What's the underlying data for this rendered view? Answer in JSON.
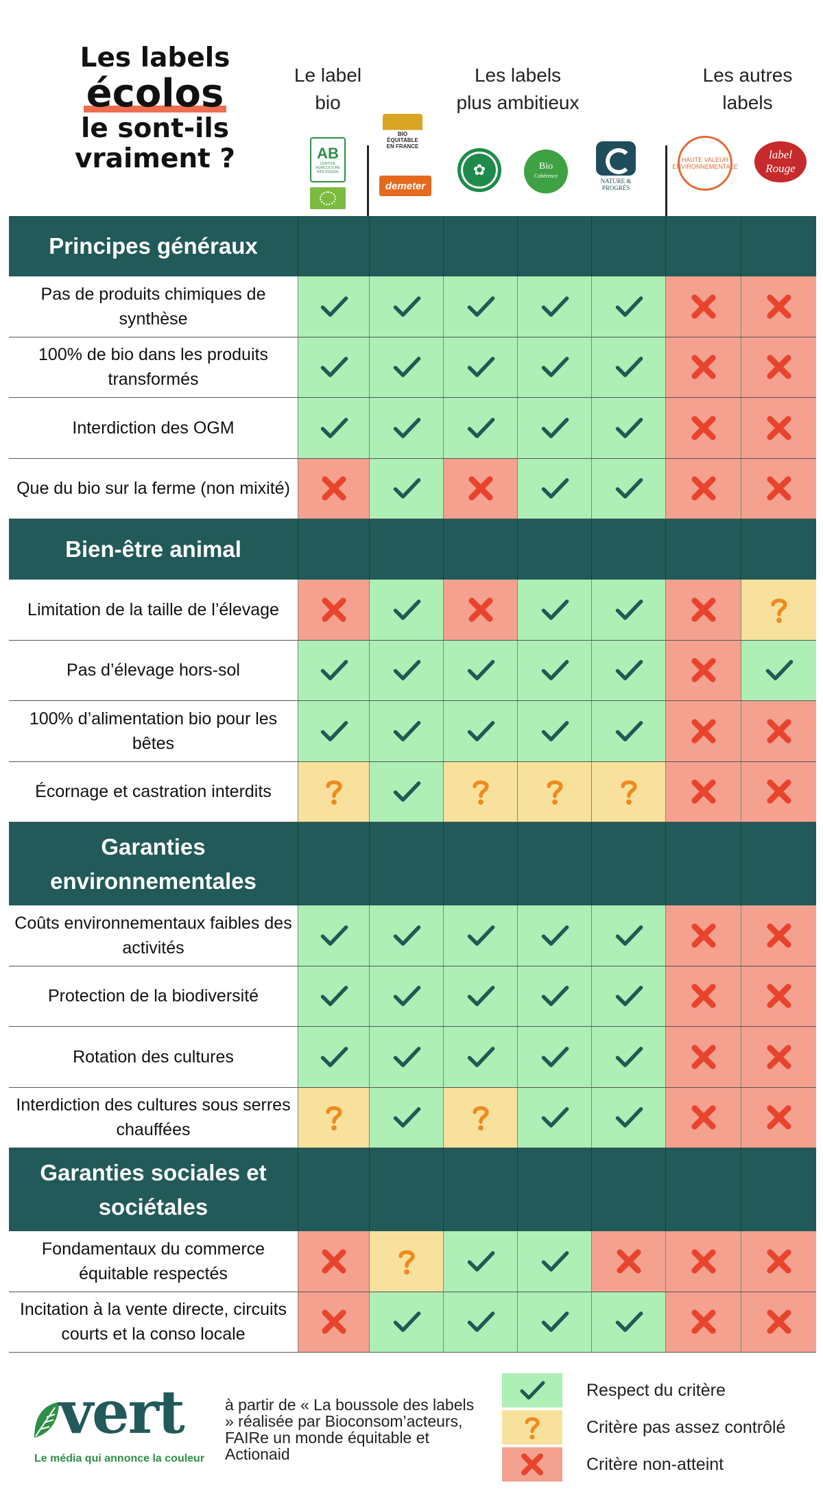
{
  "title": {
    "line1": "Les labels",
    "line2": "écolos",
    "line3": "le sont-ils",
    "line4": "vraiment ?"
  },
  "groups": {
    "bio": {
      "line1": "Le label",
      "line2": "bio"
    },
    "ambitious": {
      "line1": "Les labels",
      "line2": "plus ambitieux"
    },
    "others": {
      "line1": "Les autres",
      "line2": "labels"
    }
  },
  "logos": {
    "ab": {
      "text": "AB",
      "small": "CERTIFIÉ AGRICULTURE BIOLOGIQUE"
    },
    "bio_equitable": {
      "text": "BIO ÉQUITABLE EN FRANCE"
    },
    "demeter": {
      "text": "demeter"
    },
    "fnab": {
      "text": "✿"
    },
    "bio_coherence": {
      "text": "Bio",
      "small": "Cohérence"
    },
    "nature_progres": {
      "text": "NATURE & PROGRÈS"
    },
    "hve": {
      "text": "HAUTE VALEUR ENVIRONNEMENTALE"
    },
    "label_rouge": {
      "text": "label Rouge"
    }
  },
  "colors": {
    "section": "#215a58",
    "yes": "#aeefb6",
    "partial": "#f7e19d",
    "no": "#f4a190",
    "check": "#1f5a55",
    "question": "#f08a1e",
    "cross": "#e8442d",
    "accent": "#ee6e4f"
  },
  "chart_data": {
    "type": "table",
    "columns": [
      "AB",
      "Bio Équitable en France / Demeter",
      "FNAB",
      "Bio Cohérence",
      "Nature & Progrès",
      "HVE",
      "Label Rouge"
    ],
    "sections": [
      {
        "title": "Principes généraux",
        "rows": [
          {
            "label": "Pas de produits chimiques de synthèse",
            "values": [
              "yes",
              "yes",
              "yes",
              "yes",
              "yes",
              "no",
              "no"
            ]
          },
          {
            "label": "100% de bio dans les produits transformés",
            "values": [
              "yes",
              "yes",
              "yes",
              "yes",
              "yes",
              "no",
              "no"
            ]
          },
          {
            "label": "Interdiction des OGM",
            "values": [
              "yes",
              "yes",
              "yes",
              "yes",
              "yes",
              "no",
              "no"
            ]
          },
          {
            "label": "Que du bio sur la ferme (non mixité)",
            "values": [
              "no",
              "yes",
              "no",
              "yes",
              "yes",
              "no",
              "no"
            ]
          }
        ]
      },
      {
        "title": "Bien-être animal",
        "rows": [
          {
            "label": "Limitation de la taille de l’élevage",
            "values": [
              "no",
              "yes",
              "no",
              "yes",
              "yes",
              "no",
              "partial"
            ]
          },
          {
            "label": "Pas d’élevage hors-sol",
            "values": [
              "yes",
              "yes",
              "yes",
              "yes",
              "yes",
              "no",
              "yes"
            ]
          },
          {
            "label": "100% d’alimentation bio pour les bêtes",
            "values": [
              "yes",
              "yes",
              "yes",
              "yes",
              "yes",
              "no",
              "no"
            ]
          },
          {
            "label": "Écornage et castration interdits",
            "values": [
              "partial",
              "yes",
              "partial",
              "partial",
              "partial",
              "no",
              "no"
            ]
          }
        ]
      },
      {
        "title": "Garanties environnementales",
        "rows": [
          {
            "label": "Coûts environnementaux faibles des activités",
            "values": [
              "yes",
              "yes",
              "yes",
              "yes",
              "yes",
              "no",
              "no"
            ]
          },
          {
            "label": "Protection de la biodiversité",
            "values": [
              "yes",
              "yes",
              "yes",
              "yes",
              "yes",
              "no",
              "no"
            ]
          },
          {
            "label": "Rotation des cultures",
            "values": [
              "yes",
              "yes",
              "yes",
              "yes",
              "yes",
              "no",
              "no"
            ]
          },
          {
            "label": "Interdiction des cultures sous serres chauffées",
            "values": [
              "partial",
              "yes",
              "partial",
              "yes",
              "yes",
              "no",
              "no"
            ]
          }
        ]
      },
      {
        "title": "Garanties sociales et sociétales",
        "rows": [
          {
            "label": "Fondamentaux du commerce équitable respectés",
            "values": [
              "no",
              "partial",
              "yes",
              "yes",
              "no",
              "no",
              "no"
            ]
          },
          {
            "label": "Incitation à la vente directe, circuits courts et la conso locale",
            "values": [
              "no",
              "yes",
              "yes",
              "yes",
              "yes",
              "no",
              "no"
            ]
          }
        ]
      }
    ],
    "legend": [
      {
        "key": "yes",
        "label": "Respect du critère"
      },
      {
        "key": "partial",
        "label": "Critère pas assez contrôlé"
      },
      {
        "key": "no",
        "label": "Critère non-atteint"
      }
    ]
  },
  "footer": {
    "brand": "vert",
    "tagline": "Le média qui annonce la couleur",
    "source": "à partir de « La boussole des labels » réalisée par Bioconsom’acteurs, FAIRe un monde équitable et Actionaid"
  }
}
